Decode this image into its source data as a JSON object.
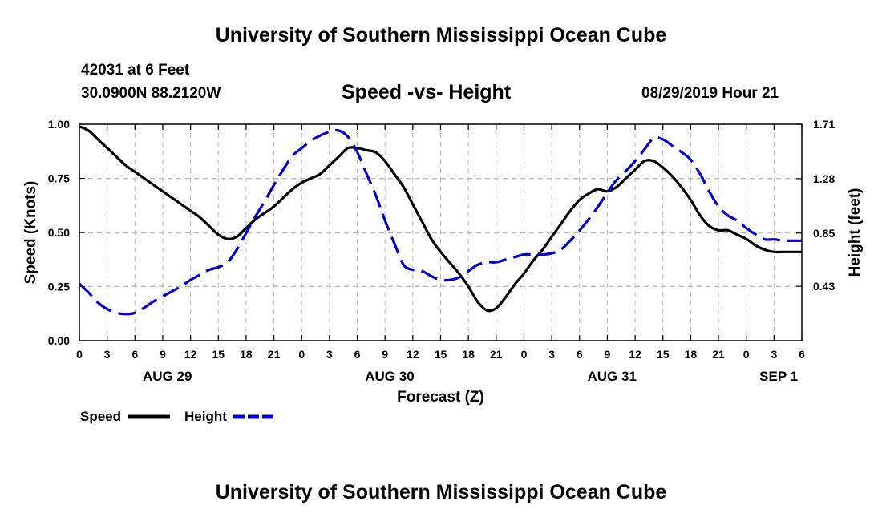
{
  "header": {
    "title": "University of Southern Mississippi Ocean Cube",
    "station_line": "42031 at 6 Feet",
    "coords_line": "30.0900N 88.2120W",
    "chart_title": "Speed -vs- Height",
    "datetime_line": "08/29/2019 Hour 21"
  },
  "footer": {
    "title": "University of Southern Mississippi Ocean Cube"
  },
  "colors": {
    "speed": "#000000",
    "height": "#0000cc",
    "grid": "#bbbbbb"
  },
  "chart_data": {
    "type": "line",
    "title": "Speed -vs- Height",
    "xlabel": "Forecast (Z)",
    "ylabel": "Speed (Knots)",
    "y2label": "Height (feet)",
    "xlim": [
      0,
      78
    ],
    "ylim": [
      0,
      1.0
    ],
    "y2lim": [
      0,
      1.71
    ],
    "grid": true,
    "x_ticks": [
      0,
      3,
      6,
      9,
      12,
      15,
      18,
      21,
      24,
      27,
      30,
      33,
      36,
      39,
      42,
      45,
      48,
      51,
      54,
      57,
      60,
      63,
      66,
      69,
      72,
      75,
      78
    ],
    "x_tick_labels": [
      "0",
      "3",
      "6",
      "9",
      "12",
      "15",
      "18",
      "21",
      "0",
      "3",
      "6",
      "9",
      "12",
      "15",
      "18",
      "21",
      "0",
      "3",
      "6",
      "9",
      "12",
      "15",
      "18",
      "21",
      "0",
      "3",
      "6"
    ],
    "y_ticks": [
      0,
      0.25,
      0.5,
      0.75,
      1.0
    ],
    "y_tick_labels": [
      "0.00",
      "0.25",
      "0.50",
      "0.75",
      "1.00"
    ],
    "y2_ticks": [
      0.43,
      0.85,
      1.28,
      1.71
    ],
    "y2_tick_labels": [
      "0.43",
      "0.85",
      "1.28",
      "1.71"
    ],
    "date_labels": [
      {
        "x": 9.5,
        "label": "AUG 29"
      },
      {
        "x": 33.5,
        "label": "AUG 30"
      },
      {
        "x": 57.5,
        "label": "AUG 31"
      },
      {
        "x": 75.5,
        "label": "SEP 1"
      }
    ],
    "series": [
      {
        "name": "Speed",
        "axis": "left",
        "style": "solid",
        "x": [
          0,
          1,
          2,
          3,
          4,
          5,
          6,
          7,
          8,
          9,
          10,
          11,
          12,
          13,
          14,
          15,
          16,
          17,
          18,
          19,
          20,
          21,
          22,
          23,
          24,
          25,
          26,
          27,
          28,
          29,
          30,
          31,
          32,
          33,
          34,
          35,
          36,
          37,
          38,
          39,
          40,
          41,
          42,
          43,
          44,
          45,
          46,
          47,
          48,
          49,
          50,
          51,
          52,
          53,
          54,
          55,
          56,
          57,
          58,
          59,
          60,
          61,
          62,
          63,
          64,
          65,
          66,
          67,
          68,
          69,
          70,
          71,
          72,
          73,
          74,
          75,
          76,
          77,
          78
        ],
        "values": [
          0.99,
          0.97,
          0.93,
          0.89,
          0.85,
          0.81,
          0.78,
          0.75,
          0.72,
          0.69,
          0.66,
          0.63,
          0.6,
          0.57,
          0.53,
          0.49,
          0.47,
          0.48,
          0.52,
          0.56,
          0.59,
          0.62,
          0.66,
          0.7,
          0.73,
          0.75,
          0.77,
          0.81,
          0.85,
          0.89,
          0.89,
          0.88,
          0.87,
          0.83,
          0.77,
          0.71,
          0.63,
          0.55,
          0.47,
          0.41,
          0.36,
          0.31,
          0.25,
          0.18,
          0.14,
          0.15,
          0.2,
          0.26,
          0.31,
          0.37,
          0.42,
          0.48,
          0.54,
          0.6,
          0.65,
          0.68,
          0.7,
          0.69,
          0.71,
          0.75,
          0.79,
          0.83,
          0.83,
          0.8,
          0.76,
          0.71,
          0.65,
          0.58,
          0.53,
          0.51,
          0.51,
          0.49,
          0.47,
          0.44,
          0.42,
          0.41,
          0.41,
          0.41,
          0.41
        ]
      },
      {
        "name": "Height",
        "axis": "right",
        "style": "dashed",
        "x": [
          0,
          1,
          2,
          3,
          4,
          5,
          6,
          7,
          8,
          9,
          10,
          11,
          12,
          13,
          14,
          15,
          16,
          17,
          18,
          19,
          20,
          21,
          22,
          23,
          24,
          25,
          26,
          27,
          28,
          29,
          30,
          31,
          32,
          33,
          34,
          35,
          36,
          37,
          38,
          39,
          40,
          41,
          42,
          43,
          44,
          45,
          46,
          47,
          48,
          49,
          50,
          51,
          52,
          53,
          54,
          55,
          56,
          57,
          58,
          59,
          60,
          61,
          62,
          63,
          64,
          65,
          66,
          67,
          68,
          69,
          70,
          71,
          72,
          73,
          74,
          75,
          76,
          77,
          78
        ],
        "values": [
          0.45,
          0.38,
          0.3,
          0.25,
          0.22,
          0.21,
          0.22,
          0.26,
          0.31,
          0.35,
          0.39,
          0.43,
          0.48,
          0.52,
          0.56,
          0.58,
          0.62,
          0.72,
          0.85,
          0.98,
          1.1,
          1.23,
          1.35,
          1.46,
          1.52,
          1.58,
          1.62,
          1.65,
          1.66,
          1.61,
          1.49,
          1.32,
          1.15,
          0.95,
          0.77,
          0.6,
          0.56,
          0.55,
          0.51,
          0.48,
          0.48,
          0.5,
          0.55,
          0.6,
          0.62,
          0.62,
          0.64,
          0.66,
          0.68,
          0.68,
          0.68,
          0.69,
          0.72,
          0.79,
          0.87,
          0.96,
          1.06,
          1.17,
          1.27,
          1.34,
          1.42,
          1.51,
          1.6,
          1.59,
          1.54,
          1.49,
          1.43,
          1.32,
          1.18,
          1.06,
          0.99,
          0.95,
          0.89,
          0.84,
          0.8,
          0.8,
          0.79,
          0.79,
          0.79
        ]
      }
    ],
    "legend": [
      {
        "label": "Speed",
        "style": "solid"
      },
      {
        "label": "Height",
        "style": "dashed"
      }
    ]
  }
}
